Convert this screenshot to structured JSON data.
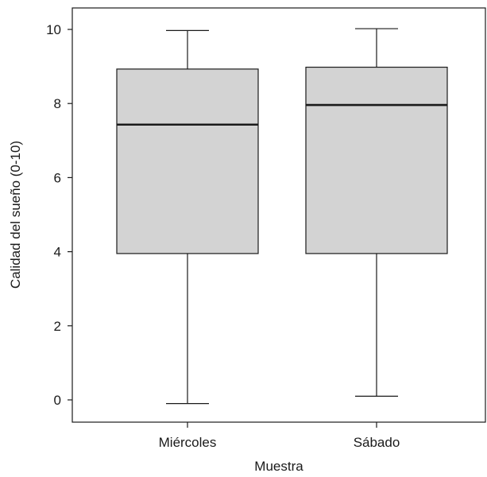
{
  "chart_data": {
    "type": "boxplot",
    "xlabel": "Muestra",
    "ylabel": "Calidad del sueño (0-10)",
    "ylim": [
      -0.7,
      10.6
    ],
    "yticks": [
      0,
      2,
      4,
      6,
      8,
      10
    ],
    "grid": false,
    "categories": [
      "Miércoles",
      "Sábado"
    ],
    "boxes": [
      {
        "category": "Miércoles",
        "min": -0.1,
        "q1": 3.95,
        "median": 7.43,
        "q3": 8.93,
        "max": 9.97
      },
      {
        "category": "Sábado",
        "min": 0.1,
        "q1": 3.95,
        "median": 7.96,
        "q3": 8.98,
        "max": 10.02
      }
    ],
    "colors": {
      "box_fill": "#d3d3d3",
      "stroke": "#1a1a1a"
    }
  }
}
